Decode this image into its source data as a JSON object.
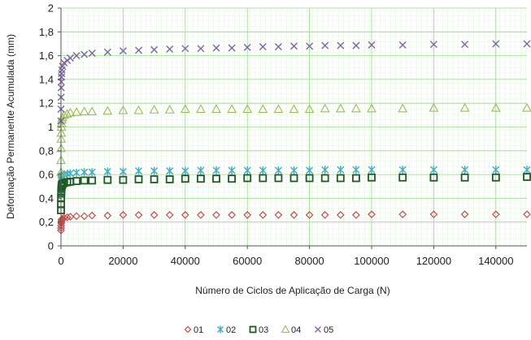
{
  "chart_data": {
    "type": "scatter",
    "xlabel": "Número de Ciclos de Aplicação de Carga (N)",
    "ylabel": "Deformação Permanente Acumulada (mm)",
    "xlim": [
      0,
      150000
    ],
    "ylim": [
      0,
      2
    ],
    "xticks": [
      "0",
      "20000",
      "40000",
      "60000",
      "80000",
      "100000",
      "120000",
      "140000"
    ],
    "xtick_values": [
      0,
      20000,
      40000,
      60000,
      80000,
      100000,
      120000,
      140000
    ],
    "yticks": [
      "0",
      "0,2",
      "0,4",
      "0,6",
      "0,8",
      "1",
      "1,2",
      "1,4",
      "1,6",
      "1,8",
      "2"
    ],
    "ytick_values": [
      0,
      0.2,
      0.4,
      0.6,
      0.8,
      1.0,
      1.2,
      1.4,
      1.6,
      1.8,
      2.0
    ],
    "grid": true,
    "legend_position": "bottom",
    "series": [
      {
        "name": "01",
        "marker": "diamond",
        "color": "#c0504d",
        "x": [
          10,
          20,
          40,
          70,
          100,
          150,
          200,
          300,
          500,
          1000,
          2000,
          3000,
          5000,
          7500,
          10000,
          15000,
          20000,
          25000,
          30000,
          35000,
          40000,
          45000,
          50000,
          55000,
          60000,
          65000,
          70000,
          75000,
          80000,
          85000,
          90000,
          95000,
          100000,
          110000,
          120000,
          130000,
          140000,
          150000
        ],
        "y": [
          0.13,
          0.15,
          0.17,
          0.19,
          0.2,
          0.21,
          0.22,
          0.225,
          0.23,
          0.235,
          0.24,
          0.245,
          0.25,
          0.25,
          0.255,
          0.255,
          0.26,
          0.26,
          0.26,
          0.26,
          0.26,
          0.26,
          0.26,
          0.26,
          0.26,
          0.26,
          0.26,
          0.26,
          0.26,
          0.26,
          0.26,
          0.26,
          0.265,
          0.265,
          0.265,
          0.265,
          0.265,
          0.265
        ]
      },
      {
        "name": "02",
        "marker": "asterisk",
        "color": "#4bacc6",
        "x": [
          10,
          20,
          40,
          70,
          100,
          150,
          200,
          300,
          500,
          1000,
          2000,
          3000,
          5000,
          7500,
          10000,
          15000,
          20000,
          25000,
          30000,
          35000,
          40000,
          45000,
          50000,
          55000,
          60000,
          65000,
          70000,
          75000,
          80000,
          85000,
          90000,
          95000,
          100000,
          110000,
          120000,
          130000,
          140000,
          150000
        ],
        "y": [
          0.45,
          0.48,
          0.52,
          0.55,
          0.56,
          0.57,
          0.58,
          0.585,
          0.59,
          0.6,
          0.605,
          0.61,
          0.615,
          0.62,
          0.62,
          0.625,
          0.625,
          0.63,
          0.63,
          0.63,
          0.63,
          0.635,
          0.635,
          0.635,
          0.635,
          0.635,
          0.635,
          0.635,
          0.635,
          0.64,
          0.64,
          0.64,
          0.64,
          0.64,
          0.64,
          0.64,
          0.64,
          0.64
        ]
      },
      {
        "name": "03",
        "marker": "square",
        "color": "#1e5a23",
        "x": [
          10,
          20,
          40,
          70,
          100,
          150,
          200,
          300,
          500,
          1000,
          2000,
          3000,
          5000,
          7500,
          10000,
          15000,
          20000,
          25000,
          30000,
          35000,
          40000,
          45000,
          50000,
          55000,
          60000,
          65000,
          70000,
          75000,
          80000,
          85000,
          90000,
          95000,
          100000,
          110000,
          120000,
          130000,
          140000,
          150000
        ],
        "y": [
          0.3,
          0.35,
          0.4,
          0.44,
          0.46,
          0.48,
          0.5,
          0.51,
          0.52,
          0.53,
          0.535,
          0.54,
          0.545,
          0.55,
          0.55,
          0.555,
          0.555,
          0.56,
          0.56,
          0.56,
          0.565,
          0.565,
          0.565,
          0.565,
          0.57,
          0.57,
          0.57,
          0.57,
          0.57,
          0.57,
          0.57,
          0.57,
          0.575,
          0.575,
          0.575,
          0.575,
          0.575,
          0.58
        ]
      },
      {
        "name": "04",
        "marker": "triangle",
        "color": "#9bbb59",
        "x": [
          10,
          20,
          40,
          70,
          100,
          150,
          200,
          300,
          500,
          1000,
          2000,
          3000,
          5000,
          7500,
          10000,
          15000,
          20000,
          25000,
          30000,
          35000,
          40000,
          45000,
          50000,
          55000,
          60000,
          65000,
          70000,
          75000,
          80000,
          85000,
          90000,
          95000,
          100000,
          110000,
          120000,
          130000,
          140000,
          150000
        ],
        "y": [
          0.62,
          0.72,
          0.82,
          0.9,
          0.95,
          1.0,
          1.03,
          1.06,
          1.08,
          1.1,
          1.11,
          1.12,
          1.125,
          1.13,
          1.13,
          1.135,
          1.14,
          1.14,
          1.145,
          1.145,
          1.15,
          1.15,
          1.15,
          1.15,
          1.15,
          1.15,
          1.15,
          1.15,
          1.15,
          1.155,
          1.155,
          1.155,
          1.155,
          1.155,
          1.16,
          1.16,
          1.16,
          1.16
        ]
      },
      {
        "name": "05",
        "marker": "x",
        "color": "#8064a2",
        "x": [
          10,
          20,
          40,
          70,
          100,
          150,
          200,
          300,
          500,
          1000,
          2000,
          3000,
          5000,
          7500,
          10000,
          15000,
          20000,
          25000,
          30000,
          35000,
          40000,
          45000,
          50000,
          55000,
          60000,
          65000,
          70000,
          75000,
          80000,
          85000,
          90000,
          95000,
          100000,
          110000,
          120000,
          130000,
          140000,
          150000
        ],
        "y": [
          1.05,
          1.15,
          1.25,
          1.33,
          1.38,
          1.42,
          1.45,
          1.48,
          1.51,
          1.54,
          1.56,
          1.58,
          1.6,
          1.61,
          1.62,
          1.63,
          1.64,
          1.645,
          1.65,
          1.655,
          1.66,
          1.66,
          1.665,
          1.665,
          1.67,
          1.675,
          1.675,
          1.68,
          1.68,
          1.685,
          1.685,
          1.685,
          1.69,
          1.69,
          1.695,
          1.695,
          1.7,
          1.7
        ]
      }
    ]
  }
}
